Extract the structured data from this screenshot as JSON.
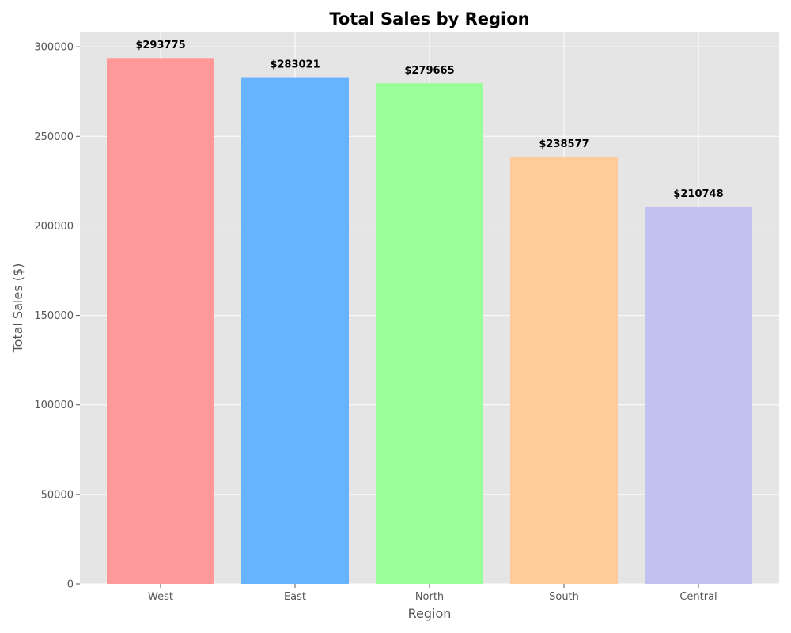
{
  "chart_data": {
    "type": "bar",
    "title": "Total Sales by Region",
    "xlabel": "Region",
    "ylabel": "Total Sales ($)",
    "categories": [
      "West",
      "East",
      "North",
      "South",
      "Central"
    ],
    "values": [
      293775,
      283021,
      279665,
      238577,
      210748
    ],
    "data_labels": [
      "$293775",
      "$283021",
      "$279665",
      "$238577",
      "$210748"
    ],
    "colors": [
      "#ff9999",
      "#66b3ff",
      "#99ff99",
      "#ffcc99",
      "#c2c2f0"
    ],
    "ylim": [
      0,
      308464
    ],
    "yticks": [
      0,
      50000,
      100000,
      150000,
      200000,
      250000,
      300000
    ],
    "ytick_labels": [
      "0",
      "50000",
      "100000",
      "150000",
      "200000",
      "250000",
      "300000"
    ],
    "grid": true,
    "background": "#e5e5e5"
  }
}
